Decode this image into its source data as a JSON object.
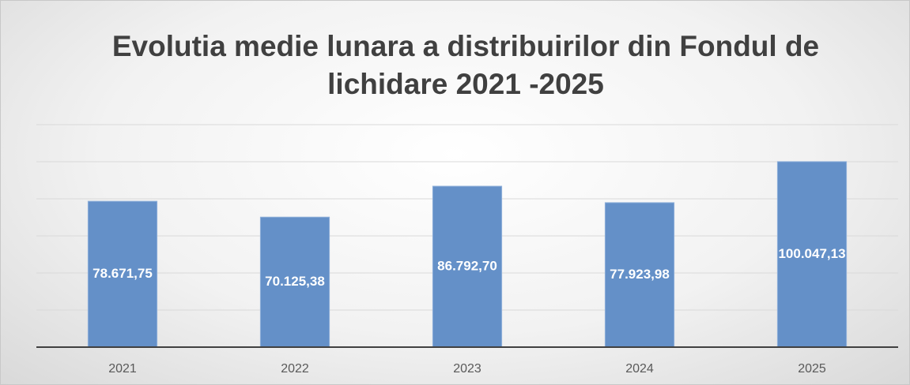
{
  "chart_data": {
    "type": "bar",
    "title": "Evolutia medie lunara a distribuirilor din Fondul de lichidare 2021 -2025",
    "categories": [
      "2021",
      "2022",
      "2023",
      "2024",
      "2025"
    ],
    "values": [
      78671.75,
      70125.38,
      86792.7,
      77923.98,
      100047.13
    ],
    "value_labels": [
      "78.671,75",
      "70.125,38",
      "86.792,70",
      "77.923,98",
      "100.047,13"
    ],
    "color": "#6490c8",
    "ylim": [
      0,
      120000
    ],
    "yticks": [
      0,
      20000,
      40000,
      60000,
      80000,
      100000,
      120000
    ],
    "grid": true
  }
}
